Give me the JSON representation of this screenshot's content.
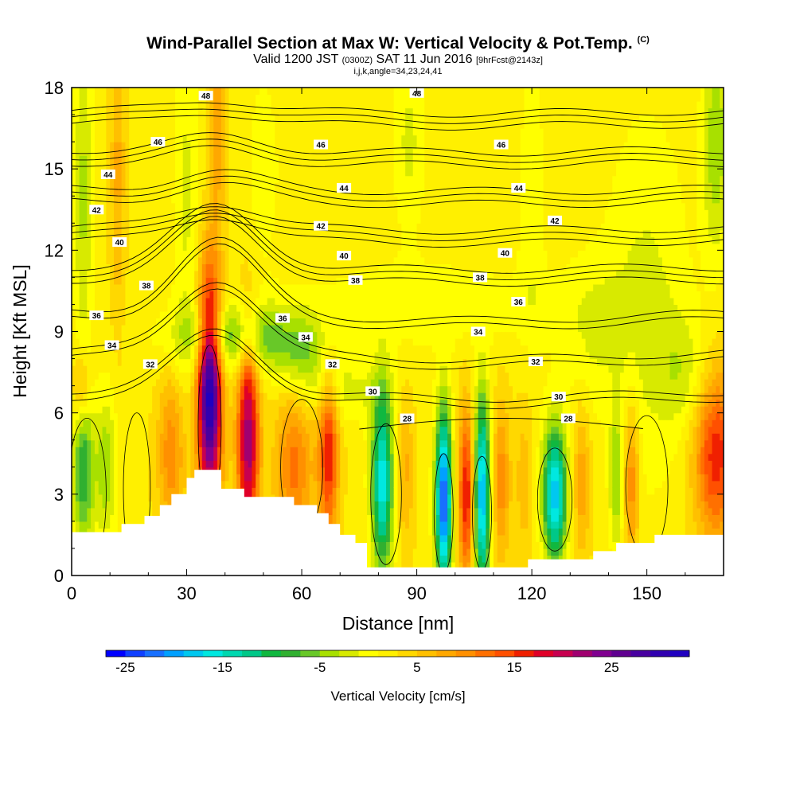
{
  "header": {
    "title_main": "Wind-Parallel Section at Max W: Vertical Velocity & Pot.Temp.",
    "title_copyright": "(C)",
    "valid_prefix": "Valid 1200 JST",
    "valid_z": "(0300Z)",
    "valid_date": "SAT 11 Jun 2016",
    "valid_fcst": "[9hrFcst@2143z]",
    "indices": "i,j,k,angle=34,23,24,41"
  },
  "chart_data": {
    "type": "heatmap",
    "title": "Wind-Parallel Section at Max W: Vertical Velocity & Pot.Temp.",
    "xlabel": "Distance [nm]",
    "ylabel": "Height [Kft MSL]",
    "xlim": [
      0,
      170
    ],
    "ylim": [
      0,
      18
    ],
    "xticks": [
      0,
      30,
      60,
      90,
      120,
      150
    ],
    "yticks": [
      0,
      3,
      6,
      9,
      12,
      15,
      18
    ],
    "colorbar": {
      "label": "Vertical Velocity [cm/s]",
      "ticks": [
        -25,
        -15,
        -5,
        5,
        15,
        25
      ],
      "min": -27,
      "max": 33,
      "step": 2,
      "colors": [
        "#0000ff",
        "#1040ff",
        "#1870ff",
        "#00a0ff",
        "#00c8f0",
        "#00e8e0",
        "#00d8b0",
        "#00c888",
        "#10b840",
        "#30b030",
        "#68c828",
        "#a8e000",
        "#d8ea00",
        "#ffff00",
        "#fff000",
        "#ffd800",
        "#ffc000",
        "#ffa800",
        "#ff9000",
        "#ff7000",
        "#ff5000",
        "#f02000",
        "#e00028",
        "#c80050",
        "#a00070",
        "#800090",
        "#600090",
        "#4800a0",
        "#3000b0",
        "#2000c0"
      ]
    },
    "terrain": [
      [
        0,
        1.6
      ],
      [
        13,
        1.6
      ],
      [
        13,
        1.9
      ],
      [
        19,
        1.9
      ],
      [
        19,
        2.2
      ],
      [
        23,
        2.2
      ],
      [
        23,
        2.6
      ],
      [
        26,
        2.6
      ],
      [
        26,
        3.0
      ],
      [
        30,
        3.0
      ],
      [
        30,
        3.6
      ],
      [
        32,
        3.6
      ],
      [
        32,
        3.9
      ],
      [
        39,
        3.9
      ],
      [
        39,
        3.2
      ],
      [
        45,
        3.2
      ],
      [
        45,
        2.9
      ],
      [
        58,
        2.9
      ],
      [
        58,
        2.6
      ],
      [
        64,
        2.6
      ],
      [
        64,
        2.3
      ],
      [
        67,
        2.3
      ],
      [
        67,
        1.9
      ],
      [
        70,
        1.9
      ],
      [
        70,
        1.5
      ],
      [
        74,
        1.5
      ],
      [
        74,
        1.2
      ],
      [
        77,
        1.2
      ],
      [
        77,
        0.3
      ],
      [
        119,
        0.3
      ],
      [
        119,
        0.6
      ],
      [
        136,
        0.6
      ],
      [
        136,
        0.9
      ],
      [
        142,
        0.9
      ],
      [
        142,
        1.2
      ],
      [
        152,
        1.2
      ],
      [
        152,
        1.5
      ],
      [
        170,
        1.5
      ]
    ],
    "w_features": [
      {
        "x": 36,
        "y": 6.8,
        "sx": 2.2,
        "sy": 3.0,
        "w": 30
      },
      {
        "x": 46,
        "y": 5.0,
        "sx": 2.0,
        "sy": 2.8,
        "w": 20
      },
      {
        "x": 58,
        "y": 4.0,
        "sx": 3.5,
        "sy": 2.2,
        "w": 9
      },
      {
        "x": 67,
        "y": 4.5,
        "sx": 1.8,
        "sy": 2.2,
        "w": 14
      },
      {
        "x": 81,
        "y": 3.5,
        "sx": 2.0,
        "sy": 2.4,
        "w": -19
      },
      {
        "x": 87,
        "y": 4.0,
        "sx": 1.6,
        "sy": 2.0,
        "w": 5
      },
      {
        "x": 97,
        "y": 2.8,
        "sx": 1.5,
        "sy": 2.4,
        "w": -26
      },
      {
        "x": 103,
        "y": 3.0,
        "sx": 1.5,
        "sy": 2.2,
        "w": 15
      },
      {
        "x": 107,
        "y": 3.0,
        "sx": 1.5,
        "sy": 2.6,
        "w": -22
      },
      {
        "x": 112,
        "y": 3.5,
        "sx": 1.6,
        "sy": 2.0,
        "w": 8
      },
      {
        "x": 118,
        "y": 3.5,
        "sx": 1.6,
        "sy": 2.0,
        "w": 4
      },
      {
        "x": 126,
        "y": 3.0,
        "sx": 2.2,
        "sy": 1.8,
        "w": -21
      },
      {
        "x": 133,
        "y": 3.5,
        "sx": 1.6,
        "sy": 2.0,
        "w": 6
      },
      {
        "x": 146,
        "y": 3.5,
        "sx": 1.4,
        "sy": 2.0,
        "w": 9
      },
      {
        "x": 142,
        "y": 3.5,
        "sx": 1.2,
        "sy": 1.8,
        "w": -7
      },
      {
        "x": 168,
        "y": 4.5,
        "sx": 4.0,
        "sy": 2.2,
        "w": 14
      },
      {
        "x": 3,
        "y": 3.8,
        "sx": 2.0,
        "sy": 2.0,
        "w": -11
      },
      {
        "x": 9,
        "y": 4.0,
        "sx": 2.0,
        "sy": 2.0,
        "w": -7
      },
      {
        "x": 2.5,
        "y": 7.0,
        "sx": 1.5,
        "sy": 1.0,
        "w": 7
      },
      {
        "x": 26,
        "y": 4.5,
        "sx": 2.5,
        "sy": 2.0,
        "w": 8
      },
      {
        "x": 3,
        "y": 14.0,
        "sx": 1.8,
        "sy": 4.5,
        "w": -6
      },
      {
        "x": 12,
        "y": 15.0,
        "sx": 1.3,
        "sy": 4.0,
        "w": 5
      },
      {
        "x": 30,
        "y": 14.0,
        "sx": 2.5,
        "sy": 4.5,
        "w": -4
      },
      {
        "x": 38,
        "y": 16.5,
        "sx": 1.5,
        "sy": 2.5,
        "w": 6
      },
      {
        "x": 50,
        "y": 15.0,
        "sx": 3.0,
        "sy": 2.5,
        "w": -3
      },
      {
        "x": 43,
        "y": 8.8,
        "sx": 12.0,
        "sy": 0.9,
        "w": -9
      },
      {
        "x": 60,
        "y": 8.0,
        "sx": 5.0,
        "sy": 1.0,
        "w": -6
      },
      {
        "x": 72,
        "y": 6.8,
        "sx": 8.0,
        "sy": 0.8,
        "w": -4
      },
      {
        "x": 92,
        "y": 10.0,
        "sx": 25.0,
        "sy": 1.2,
        "w": -3
      },
      {
        "x": 150,
        "y": 10.0,
        "sx": 8.0,
        "sy": 5.0,
        "w": -4
      },
      {
        "x": 168,
        "y": 16.0,
        "sx": 2.5,
        "sy": 3.0,
        "w": -7
      },
      {
        "x": 88,
        "y": 16.0,
        "sx": 3.0,
        "sy": 2.5,
        "w": -4
      },
      {
        "x": 120,
        "y": 14.0,
        "sx": 2.5,
        "sy": 4.0,
        "w": -3
      },
      {
        "x": 135,
        "y": 9.0,
        "sx": 6.0,
        "sy": 2.0,
        "w": -3
      },
      {
        "x": 160,
        "y": 7.5,
        "sx": 5.0,
        "sy": 1.5,
        "w": -4
      }
    ],
    "contour_labels": [
      {
        "x": 35,
        "y": 17.7,
        "text": "48"
      },
      {
        "x": 90,
        "y": 17.8,
        "text": "48"
      },
      {
        "x": 22.5,
        "y": 16.0,
        "text": "46"
      },
      {
        "x": 65,
        "y": 15.9,
        "text": "46"
      },
      {
        "x": 112,
        "y": 15.9,
        "text": "46"
      },
      {
        "x": 9.5,
        "y": 14.8,
        "text": "44"
      },
      {
        "x": 71,
        "y": 14.3,
        "text": "44"
      },
      {
        "x": 116.5,
        "y": 14.3,
        "text": "44"
      },
      {
        "x": 6.5,
        "y": 13.5,
        "text": "42"
      },
      {
        "x": 65,
        "y": 12.9,
        "text": "42"
      },
      {
        "x": 126,
        "y": 13.1,
        "text": "42"
      },
      {
        "x": 12.5,
        "y": 12.3,
        "text": "40"
      },
      {
        "x": 71,
        "y": 11.8,
        "text": "40"
      },
      {
        "x": 113,
        "y": 11.9,
        "text": "40"
      },
      {
        "x": 19.5,
        "y": 10.7,
        "text": "38"
      },
      {
        "x": 74,
        "y": 10.9,
        "text": "38"
      },
      {
        "x": 106.5,
        "y": 11.0,
        "text": "38"
      },
      {
        "x": 6.5,
        "y": 9.6,
        "text": "36"
      },
      {
        "x": 55,
        "y": 9.5,
        "text": "36"
      },
      {
        "x": 116.5,
        "y": 10.1,
        "text": "36"
      },
      {
        "x": 10.5,
        "y": 8.5,
        "text": "34"
      },
      {
        "x": 61,
        "y": 8.8,
        "text": "34"
      },
      {
        "x": 106,
        "y": 9.0,
        "text": "34"
      },
      {
        "x": 20.5,
        "y": 7.8,
        "text": "32"
      },
      {
        "x": 68,
        "y": 7.8,
        "text": "32"
      },
      {
        "x": 121,
        "y": 7.9,
        "text": "32"
      },
      {
        "x": 78.5,
        "y": 6.8,
        "text": "30"
      },
      {
        "x": 127,
        "y": 6.6,
        "text": "30"
      },
      {
        "x": 87.5,
        "y": 5.8,
        "text": "28"
      },
      {
        "x": 129.5,
        "y": 5.8,
        "text": "28"
      }
    ],
    "theta_levels": [
      28,
      30,
      32,
      34,
      36,
      38,
      40,
      42,
      44,
      46,
      48
    ]
  }
}
